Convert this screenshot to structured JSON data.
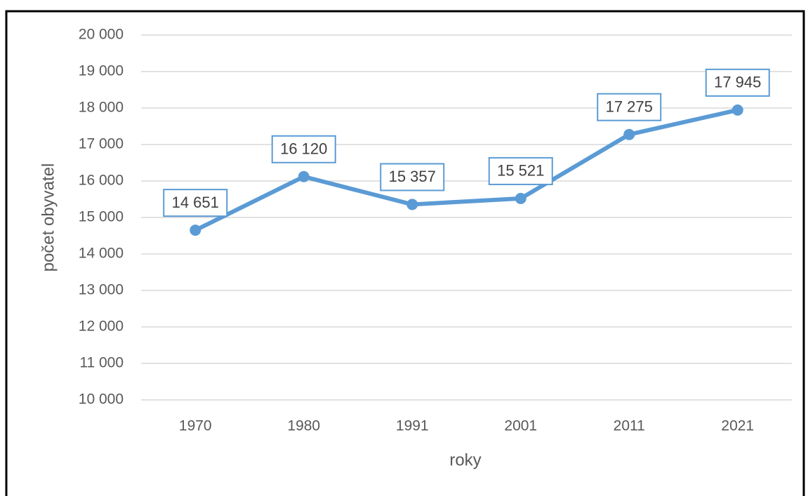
{
  "chart_data": {
    "type": "line",
    "x_label": "roky",
    "y_label": "počet obyvatel",
    "categories": [
      "1970",
      "1980",
      "1991",
      "2001",
      "2011",
      "2021"
    ],
    "series": [
      {
        "name": "počet obyvatel",
        "color": "#5b9bd5",
        "values": [
          14651,
          16120,
          15357,
          15521,
          17275,
          17945
        ],
        "value_labels": [
          "14 651",
          "16 120",
          "15 357",
          "15 521",
          "17 275",
          "17 945"
        ]
      }
    ],
    "ylim": [
      10000,
      20000
    ],
    "yticks": [
      {
        "value": 10000,
        "label": "10 000"
      },
      {
        "value": 11000,
        "label": "11 000"
      },
      {
        "value": 12000,
        "label": "12 000"
      },
      {
        "value": 13000,
        "label": "13 000"
      },
      {
        "value": 14000,
        "label": "14 000"
      },
      {
        "value": 15000,
        "label": "15 000"
      },
      {
        "value": 16000,
        "label": "16 000"
      },
      {
        "value": 17000,
        "label": "17 000"
      },
      {
        "value": 18000,
        "label": "18 000"
      },
      {
        "value": 19000,
        "label": "19 000"
      },
      {
        "value": 20000,
        "label": "20 000"
      }
    ],
    "grid": true
  }
}
